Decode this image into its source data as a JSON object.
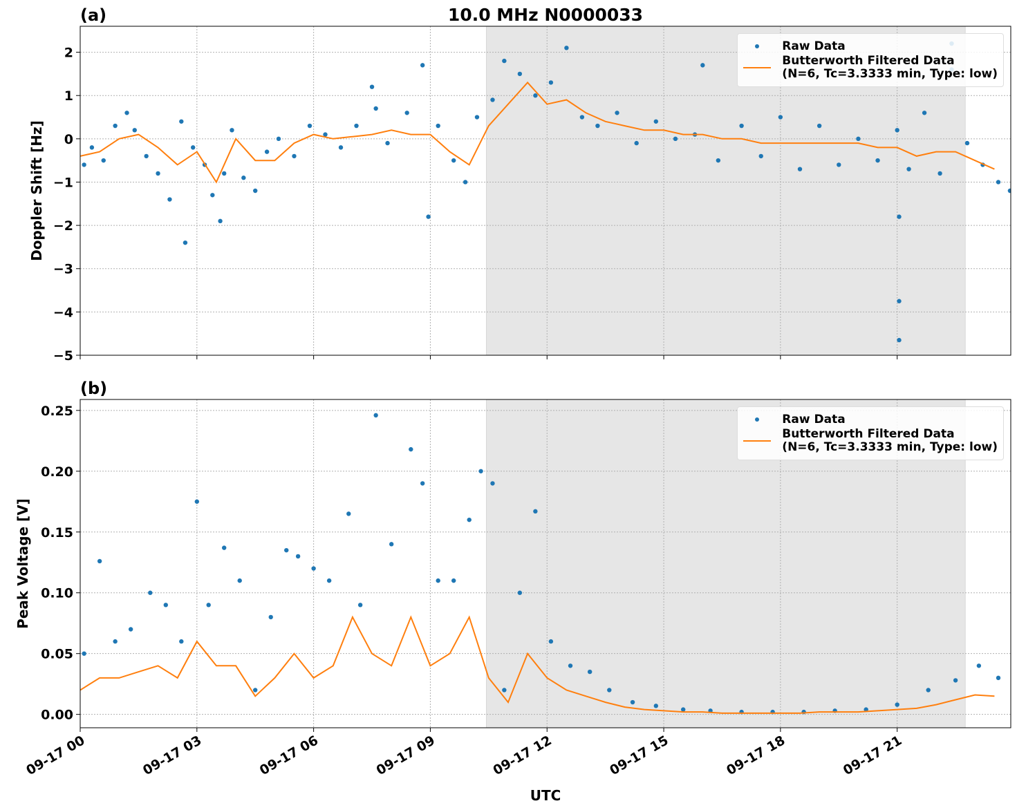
{
  "chart_data": [
    {
      "type": "scatter",
      "title": "10.0 MHz N0000033",
      "panel_label": "(a)",
      "ylabel": "Doppler Shift [Hz]",
      "xlim": [
        0,
        23.92
      ],
      "ylim": [
        -5,
        2.6
      ],
      "xticks": [
        0,
        3,
        6,
        9,
        12,
        15,
        18,
        21
      ],
      "yticks": [
        {
          "value": -5,
          "label": "−5"
        },
        {
          "value": -4,
          "label": "−4"
        },
        {
          "value": -3,
          "label": "−3"
        },
        {
          "value": -2,
          "label": "−2"
        },
        {
          "value": -1,
          "label": "−1"
        },
        0,
        1,
        2
      ],
      "grid": true,
      "legend": "upper right",
      "shade": [
        10.44,
        22.75
      ],
      "shade_color": "#e6e6e6",
      "series": [
        {
          "name": "Raw Data",
          "type": "scatter",
          "color": "#1f77b4",
          "x": [
            0.1,
            0.3,
            0.6,
            0.9,
            1.2,
            1.4,
            1.7,
            2.0,
            2.3,
            2.6,
            2.7,
            2.9,
            3.2,
            3.4,
            3.6,
            3.7,
            3.9,
            4.2,
            4.5,
            4.8,
            5.1,
            5.5,
            5.9,
            6.3,
            6.7,
            7.1,
            7.5,
            7.6,
            7.9,
            8.4,
            8.8,
            8.95,
            9.2,
            9.6,
            9.9,
            10.2,
            10.6,
            10.9,
            11.3,
            11.7,
            12.1,
            12.5,
            12.9,
            13.3,
            13.8,
            14.3,
            14.8,
            15.3,
            15.8,
            16.0,
            16.4,
            17.0,
            17.5,
            18.0,
            18.5,
            19.0,
            19.5,
            20.0,
            20.5,
            21.0,
            21.05,
            21.05,
            21.05,
            21.3,
            21.7,
            22.1,
            22.4,
            22.4,
            22.8,
            23.2,
            23.6,
            23.9
          ],
          "values": [
            -0.6,
            -0.2,
            -0.5,
            0.3,
            0.6,
            0.2,
            -0.4,
            -0.8,
            -1.4,
            0.4,
            -2.4,
            -0.2,
            -0.6,
            -1.3,
            -1.9,
            -0.8,
            0.2,
            -0.9,
            -1.2,
            -0.3,
            0.0,
            -0.4,
            0.3,
            0.1,
            -0.2,
            0.3,
            1.2,
            0.7,
            -0.1,
            0.6,
            1.7,
            -1.8,
            0.3,
            -0.5,
            -1.0,
            0.5,
            0.9,
            1.8,
            1.5,
            1.0,
            1.3,
            2.1,
            0.5,
            0.3,
            0.6,
            -0.1,
            0.4,
            0.0,
            0.1,
            1.7,
            -0.5,
            0.3,
            -0.4,
            0.5,
            -0.7,
            0.3,
            -0.6,
            0.0,
            -0.5,
            0.2,
            -1.8,
            -3.75,
            -4.65,
            -0.7,
            0.6,
            -0.8,
            2.2,
            1.6,
            -0.1,
            -0.6,
            -1.0,
            -1.2
          ]
        },
        {
          "name": "Butterworth Filtered Data\n(N=6, Tc=3.3333 min, Type: low)",
          "type": "line",
          "color": "#ff7f0e",
          "x": [
            0,
            0.5,
            1,
            1.5,
            2,
            2.5,
            3,
            3.5,
            4,
            4.5,
            5,
            5.5,
            6,
            6.5,
            7,
            7.5,
            8,
            8.5,
            9,
            9.5,
            10,
            10.5,
            11,
            11.5,
            12,
            12.5,
            13,
            13.5,
            14,
            14.5,
            15,
            15.5,
            16,
            16.5,
            17,
            17.5,
            18,
            18.5,
            19,
            19.5,
            20,
            20.5,
            21,
            21.5,
            22,
            22.5,
            23,
            23.5
          ],
          "values": [
            -0.4,
            -0.3,
            0,
            0.1,
            -0.2,
            -0.6,
            -0.3,
            -1.0,
            0.0,
            -0.5,
            -0.5,
            -0.1,
            0.1,
            0.0,
            0.05,
            0.1,
            0.2,
            0.1,
            0.1,
            -0.3,
            -0.6,
            0.3,
            0.8,
            1.3,
            0.8,
            0.9,
            0.6,
            0.4,
            0.3,
            0.2,
            0.2,
            0.1,
            0.1,
            0.0,
            0.0,
            -0.1,
            -0.1,
            -0.1,
            -0.1,
            -0.1,
            -0.1,
            -0.2,
            -0.2,
            -0.4,
            -0.3,
            -0.3,
            -0.5,
            -0.7
          ]
        }
      ]
    },
    {
      "type": "scatter",
      "panel_label": "(b)",
      "ylabel": "Peak Voltage [V]",
      "xlabel": "UTC",
      "xlim": [
        0,
        23.92
      ],
      "ylim": [
        -0.011,
        0.259
      ],
      "xticks": [
        {
          "value": 0,
          "label": "09-17 00"
        },
        {
          "value": 3,
          "label": "09-17 03"
        },
        {
          "value": 6,
          "label": "09-17 06"
        },
        {
          "value": 9,
          "label": "09-17 09"
        },
        {
          "value": 12,
          "label": "09-17 12"
        },
        {
          "value": 15,
          "label": "09-17 15"
        },
        {
          "value": 18,
          "label": "09-17 18"
        },
        {
          "value": 21,
          "label": "09-17 21"
        }
      ],
      "yticks": [
        {
          "value": 0,
          "label": "0.00"
        },
        0.05,
        {
          "value": 0.1,
          "label": "0.10"
        },
        0.15,
        {
          "value": 0.2,
          "label": "0.20"
        },
        0.25
      ],
      "grid": true,
      "legend": "upper right",
      "shade": [
        10.44,
        22.75
      ],
      "shade_color": "#e6e6e6",
      "series": [
        {
          "name": "Raw Data",
          "type": "scatter",
          "color": "#1f77b4",
          "x": [
            0.1,
            0.5,
            0.9,
            1.3,
            1.8,
            2.2,
            2.6,
            3.0,
            3.3,
            3.7,
            4.1,
            4.5,
            4.9,
            5.3,
            5.6,
            6.0,
            6.4,
            6.9,
            7.2,
            7.6,
            8.0,
            8.5,
            8.8,
            9.2,
            9.6,
            10.0,
            10.3,
            10.6,
            10.9,
            11.3,
            11.7,
            12.1,
            12.6,
            13.1,
            13.6,
            14.2,
            14.8,
            15.5,
            16.2,
            17.0,
            17.8,
            18.6,
            19.4,
            20.2,
            21.0,
            21.8,
            22.5,
            23.1,
            23.6
          ],
          "values": [
            0.05,
            0.126,
            0.06,
            0.07,
            0.1,
            0.09,
            0.06,
            0.175,
            0.09,
            0.137,
            0.11,
            0.02,
            0.08,
            0.135,
            0.13,
            0.12,
            0.11,
            0.165,
            0.09,
            0.246,
            0.14,
            0.218,
            0.19,
            0.11,
            0.11,
            0.16,
            0.2,
            0.19,
            0.02,
            0.1,
            0.167,
            0.06,
            0.04,
            0.035,
            0.02,
            0.01,
            0.007,
            0.004,
            0.003,
            0.002,
            0.002,
            0.002,
            0.003,
            0.004,
            0.008,
            0.02,
            0.028,
            0.04,
            0.03
          ]
        },
        {
          "name": "Butterworth Filtered Data\n(N=6, Tc=3.3333 min, Type: low)",
          "type": "line",
          "color": "#ff7f0e",
          "x": [
            0,
            0.5,
            1,
            1.5,
            2,
            2.5,
            3,
            3.5,
            4,
            4.5,
            5,
            5.5,
            6,
            6.5,
            7,
            7.5,
            8,
            8.5,
            9,
            9.5,
            10,
            10.5,
            11,
            11.5,
            12,
            12.5,
            13,
            13.5,
            14,
            14.5,
            15,
            15.5,
            16,
            16.5,
            17,
            17.5,
            18,
            18.5,
            19,
            19.5,
            20,
            20.5,
            21,
            21.5,
            22,
            22.5,
            23,
            23.5
          ],
          "values": [
            0.02,
            0.03,
            0.03,
            0.035,
            0.04,
            0.03,
            0.06,
            0.04,
            0.04,
            0.015,
            0.03,
            0.05,
            0.03,
            0.04,
            0.08,
            0.05,
            0.04,
            0.08,
            0.04,
            0.05,
            0.08,
            0.03,
            0.01,
            0.05,
            0.03,
            0.02,
            0.015,
            0.01,
            0.006,
            0.004,
            0.003,
            0.002,
            0.002,
            0.001,
            0.001,
            0.001,
            0.001,
            0.001,
            0.002,
            0.002,
            0.002,
            0.003,
            0.004,
            0.005,
            0.008,
            0.012,
            0.016,
            0.015
          ]
        }
      ]
    }
  ]
}
